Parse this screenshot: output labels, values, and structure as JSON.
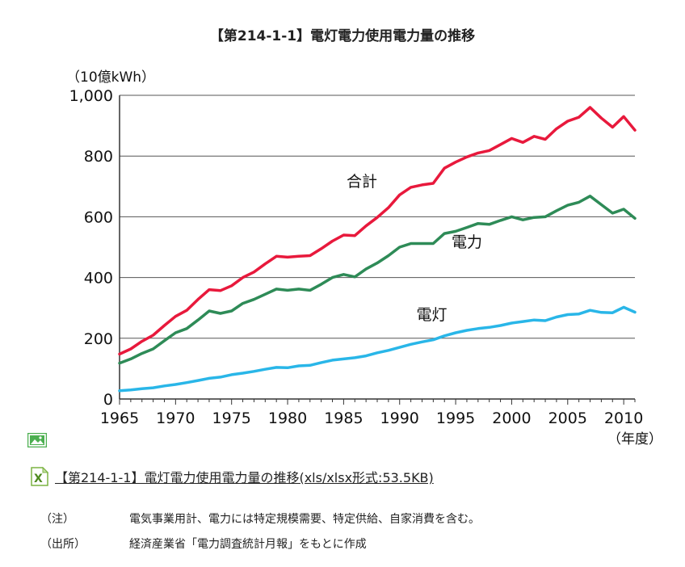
{
  "title": "【第214-1-1】電灯電力使用電力量の推移",
  "chart_data": {
    "type": "line",
    "unit_label": "（10億kWh）",
    "x_unit_label": "（年度）",
    "x_ticks": [
      1965,
      1970,
      1975,
      1980,
      1985,
      1990,
      1995,
      2000,
      2005,
      2010
    ],
    "y_ticks": [
      "0",
      "200",
      "400",
      "600",
      "800",
      "1,000"
    ],
    "xlim": [
      1965,
      2011
    ],
    "ylim": [
      0,
      1000
    ],
    "x": [
      1965,
      1966,
      1967,
      1968,
      1969,
      1970,
      1971,
      1972,
      1973,
      1974,
      1975,
      1976,
      1977,
      1978,
      1979,
      1980,
      1981,
      1982,
      1983,
      1984,
      1985,
      1986,
      1987,
      1988,
      1989,
      1990,
      1991,
      1992,
      1993,
      1994,
      1995,
      1996,
      1997,
      1998,
      1999,
      2000,
      2001,
      2002,
      2003,
      2004,
      2005,
      2006,
      2007,
      2008,
      2009,
      2010,
      2011
    ],
    "series": [
      {
        "name": "合計",
        "color": "#e8193c",
        "values": [
          148,
          165,
          190,
          210,
          242,
          272,
          292,
          328,
          360,
          357,
          373,
          400,
          418,
          445,
          470,
          467,
          470,
          472,
          495,
          520,
          540,
          538,
          570,
          598,
          630,
          672,
          697,
          705,
          710,
          760,
          780,
          797,
          810,
          818,
          838,
          858,
          845,
          865,
          855,
          890,
          915,
          928,
          960,
          925,
          895,
          930,
          885
        ]
      },
      {
        "name": "電力",
        "color": "#2e8b57",
        "values": [
          118,
          132,
          150,
          165,
          192,
          218,
          232,
          260,
          290,
          282,
          290,
          315,
          328,
          345,
          362,
          358,
          362,
          358,
          378,
          400,
          410,
          402,
          428,
          448,
          472,
          500,
          512,
          512,
          512,
          545,
          552,
          565,
          578,
          575,
          588,
          600,
          590,
          598,
          600,
          620,
          638,
          648,
          668,
          640,
          612,
          625,
          595
        ]
      },
      {
        "name": "電灯",
        "color": "#29b6e8",
        "values": [
          27,
          30,
          34,
          37,
          43,
          48,
          54,
          61,
          68,
          72,
          80,
          85,
          91,
          98,
          104,
          103,
          109,
          111,
          120,
          128,
          132,
          136,
          142,
          152,
          160,
          170,
          180,
          188,
          195,
          208,
          218,
          226,
          232,
          236,
          242,
          250,
          255,
          260,
          258,
          270,
          278,
          280,
          292,
          285,
          284,
          302,
          286
        ]
      }
    ]
  },
  "image_icon": "image-icon",
  "excel": {
    "icon": "excel-icon",
    "link_text": "【第214-1-1】電灯電力使用電力量の推移(xls/xlsx形式:53.5KB)"
  },
  "notes": [
    {
      "label": "（注）",
      "text": "電気事業用計、電力には特定規模需要、特定供給、自家消費を含む。"
    },
    {
      "label": "（出所）",
      "text": "経済産業省「電力調査統計月報」をもとに作成"
    }
  ]
}
